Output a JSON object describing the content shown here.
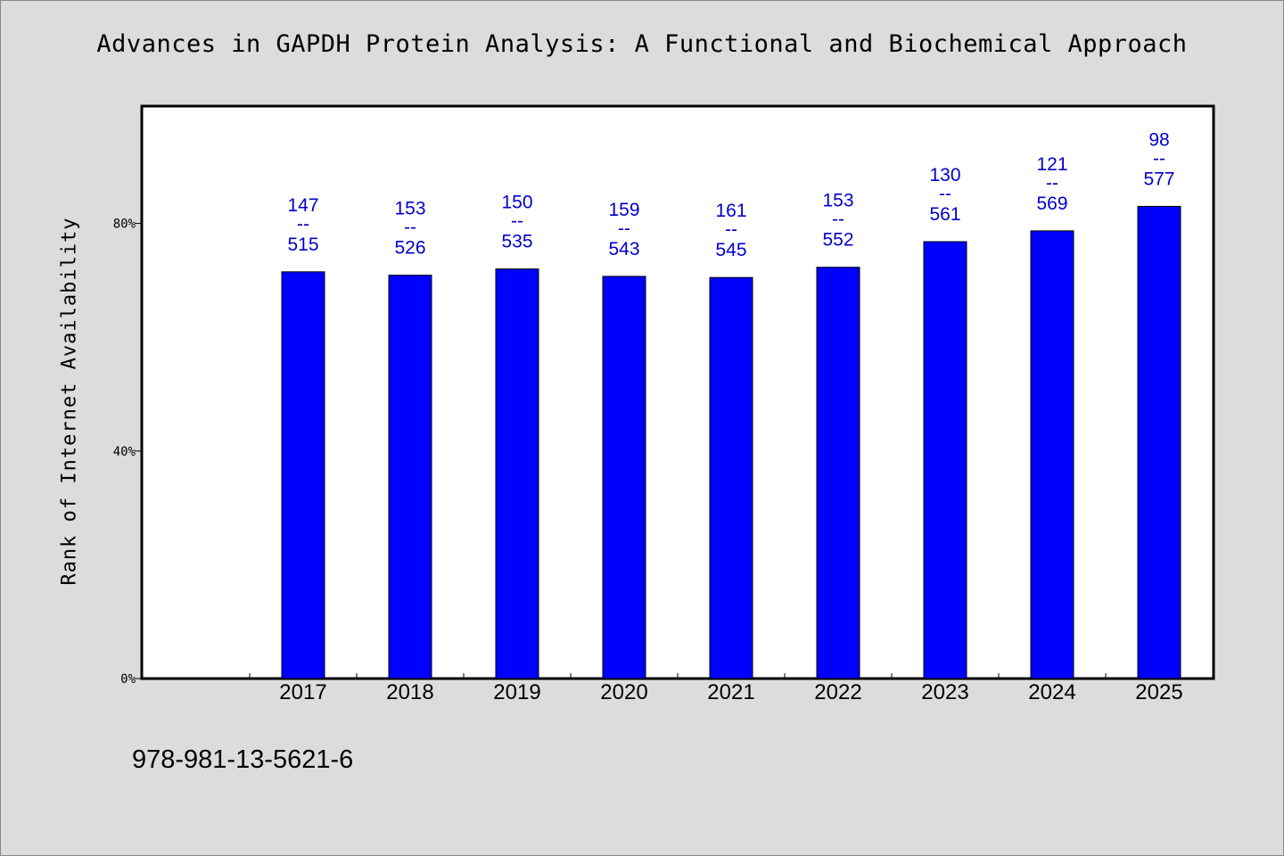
{
  "page": {
    "background": "#dcdcdc",
    "footer_text": "978-981-13-5621-6"
  },
  "chart_data": {
    "type": "bar",
    "title": "Advances in GAPDH Protein Analysis: A Functional and Biochemical Approach",
    "xlabel": "",
    "ylabel": "Rank of Internet Availability",
    "ylim": [
      0,
      1
    ],
    "yticks": [
      {
        "value": 0,
        "label": "0%"
      },
      {
        "value": 0.4,
        "label": "40%"
      },
      {
        "value": 0.8,
        "label": "80%"
      }
    ],
    "grid": false,
    "legend": "none",
    "bar_color": "#0000ff",
    "label_color": "#0000cc",
    "categories": [
      "2017",
      "2018",
      "2019",
      "2020",
      "2021",
      "2022",
      "2023",
      "2024",
      "2025"
    ],
    "rank": [
      147,
      153,
      150,
      159,
      161,
      153,
      130,
      121,
      98
    ],
    "total": [
      515,
      526,
      535,
      543,
      545,
      552,
      561,
      569,
      577
    ],
    "values": [
      0.715,
      0.709,
      0.72,
      0.707,
      0.705,
      0.723,
      0.768,
      0.787,
      0.83
    ],
    "label_separator": "--"
  }
}
